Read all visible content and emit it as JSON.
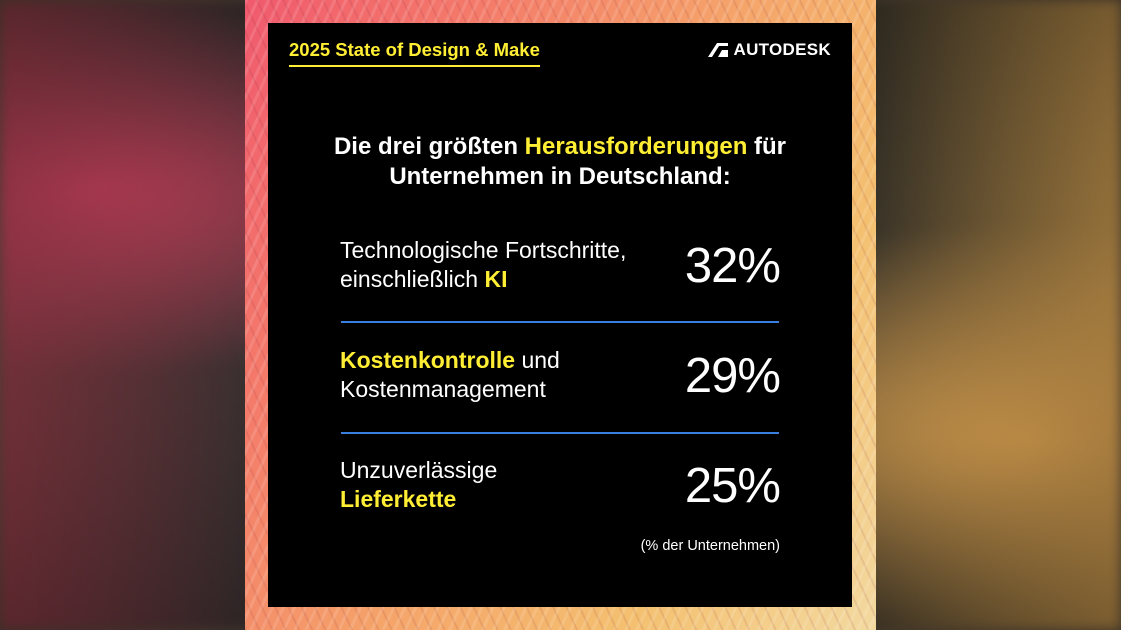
{
  "header": {
    "title": "2025 State of Design & Make",
    "brand": "AUTODESK"
  },
  "headline": {
    "part1": "Die drei größten ",
    "highlight": "Herausforderungen",
    "part2": " für",
    "line2": "Unternehmen in Deutschland:"
  },
  "items": [
    {
      "text_before": "Technologische Fortschritte,",
      "text_line2_before": "einschließlich ",
      "highlight": "KI",
      "value": "32%"
    },
    {
      "highlight": "Kostenkontrolle",
      "text_after": " und",
      "text_line2": "Kostenmanagement",
      "value": "29%"
    },
    {
      "text_before": "Unzuverlässige",
      "highlight": "Lieferkette",
      "value": "25%"
    }
  ],
  "footnote": "(% der Unternehmen)",
  "colors": {
    "accent": "#ffee33",
    "divider": "#3a7fe0",
    "panel": "#000000"
  }
}
